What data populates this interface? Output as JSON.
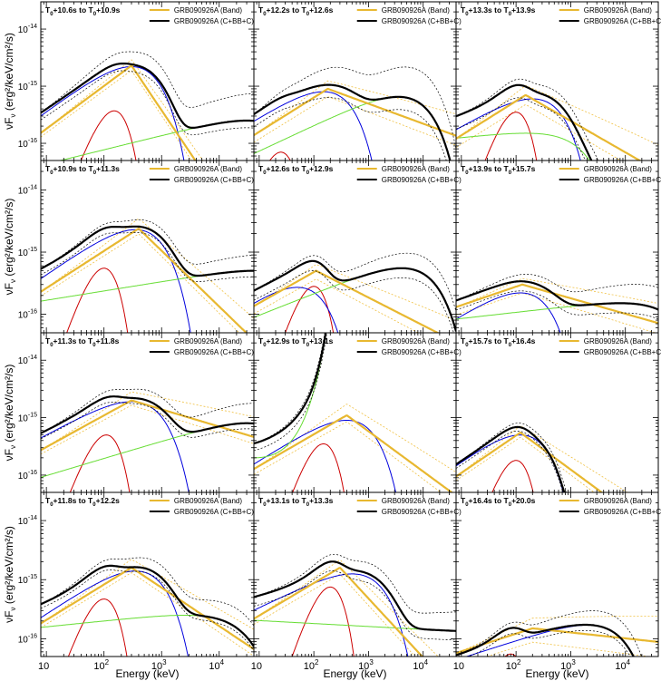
{
  "figure": {
    "xlabel": "Energy (keV)",
    "ylabel": "νF",
    "ylabel_sub": "ν",
    "ylabel_unit": " (erg²/keV/cm²/s)",
    "colors": {
      "band": "#e8b830",
      "total": "#000000",
      "blackbody": "#cc0000",
      "comptonized": "#0000dd",
      "cutoff_powerlaw": "#66dd33",
      "band_error": "#f0c040",
      "total_error": "#000000"
    },
    "legend": [
      "GRB090926A (Band)",
      "GRB090926A (C+BB+C)"
    ],
    "x_ticks": [
      {
        "label": "10",
        "exp": ""
      },
      {
        "label": "10",
        "exp": "2"
      },
      {
        "label": "10",
        "exp": "3"
      },
      {
        "label": "10",
        "exp": "4"
      }
    ],
    "y_ticks": [
      {
        "label": "10",
        "exp": "-14"
      },
      {
        "label": "10",
        "exp": "-15"
      },
      {
        "label": "10",
        "exp": "-16"
      }
    ]
  },
  "chart_data": [
    {
      "type": "line",
      "title": "T0+10.6s to T0+10.9s",
      "row": 0,
      "col": 0,
      "t1": "+10.6s to T",
      "t2": "+10.9s",
      "xlim": [
        8,
        40000
      ],
      "ylim": [
        5e-17,
        3e-14
      ],
      "comptonized": {
        "A": 2.2e-15,
        "Ep": 300,
        "a": 0.75
      },
      "blackbody": {
        "A": 3.7e-16,
        "Ep": 150
      },
      "third_c": {
        "A": 2.5e-16,
        "Ep": 30000,
        "a": 0.25
      },
      "band": {
        "A": 2.3e-15,
        "Ep": 300,
        "a": 0.75,
        "b": -1.5
      },
      "total_ef": [
        0.75,
        2.0
      ],
      "band_ef": [
        0.85,
        1.15
      ]
    },
    {
      "type": "line",
      "title": "T0+12.2s to T0+12.6s",
      "row": 0,
      "col": 1,
      "t1": "+12.2s to T",
      "t2": "+12.6s",
      "xlim": [
        8,
        40000
      ],
      "ylim": [
        5e-17,
        3e-14
      ],
      "comptonized": {
        "A": 8e-16,
        "Ep": 150,
        "a": 0.6
      },
      "blackbody": {
        "A": 7e-17,
        "Ep": 25
      },
      "third_c": {
        "A": 6.5e-16,
        "Ep": 3500,
        "a": 0.45
      },
      "band": {
        "A": 9e-16,
        "Ep": 180,
        "a": 0.6,
        "b": -0.35
      },
      "total_ef": [
        0.6,
        3.0
      ],
      "band_ef": [
        0.75,
        1.5
      ]
    },
    {
      "type": "line",
      "title": "T0+13.3s to T0+13.9s",
      "row": 0,
      "col": 2,
      "t1": "+13.3s to T",
      "t2": "+13.9s",
      "xlim": [
        8,
        40000
      ],
      "ylim": [
        5e-17,
        3e-14
      ],
      "comptonized": {
        "A": 6e-16,
        "Ep": 200,
        "a": 0.55
      },
      "blackbody": {
        "A": 3.5e-16,
        "Ep": 100
      },
      "third_c": {
        "A": 1.5e-16,
        "Ep": 150,
        "a": 0.1
      },
      "band": {
        "A": 7e-16,
        "Ep": 150,
        "a": 0.6,
        "b": -0.55
      },
      "total_ef": [
        0.6,
        1.5
      ],
      "band_ef": [
        0.7,
        1.8
      ]
    },
    {
      "type": "line",
      "title": "T0+10.9s to T0+11.3s",
      "row": 1,
      "col": 0,
      "t1": "+10.9s to T",
      "t2": "+11.3s",
      "xlim": [
        8,
        40000
      ],
      "ylim": [
        5e-17,
        3e-14
      ],
      "comptonized": {
        "A": 2.3e-15,
        "Ep": 350,
        "a": 0.65
      },
      "blackbody": {
        "A": 5.5e-16,
        "Ep": 100
      },
      "third_c": {
        "A": 5e-16,
        "Ep": 40000,
        "a": 0.15
      },
      "band": {
        "A": 2.4e-15,
        "Ep": 400,
        "a": 0.6,
        "b": -0.9
      },
      "total_ef": [
        0.8,
        1.2
      ],
      "band_ef": [
        0.85,
        1.4
      ]
    },
    {
      "type": "line",
      "title": "T0+12.6s to T0+12.9s",
      "row": 1,
      "col": 1,
      "t1": "+12.6s to T",
      "t2": "+12.9s",
      "xlim": [
        8,
        40000
      ],
      "ylim": [
        5e-17,
        3e-14
      ],
      "comptonized": {
        "A": 2.7e-16,
        "Ep": 50,
        "a": 0.6
      },
      "blackbody": {
        "A": 2.8e-16,
        "Ep": 100
      },
      "third_c": {
        "A": 5.5e-16,
        "Ep": 4000,
        "a": 0.35
      },
      "band": {
        "A": 5e-16,
        "Ep": 110,
        "a": 0.5,
        "b": -0.45
      },
      "total_ef": [
        0.7,
        1.4
      ],
      "band_ef": [
        0.75,
        1.4
      ]
    },
    {
      "type": "line",
      "title": "T0+13.9s to T0+15.7s",
      "row": 1,
      "col": 2,
      "t1": "+13.9s to T",
      "t2": "+15.7s",
      "xlim": [
        8,
        40000
      ],
      "ylim": [
        5e-17,
        3e-14
      ],
      "comptonized": {
        "A": 2.2e-16,
        "Ep": 120,
        "a": 0.55
      },
      "blackbody": {
        "A": 1e-17,
        "Ep": 100
      },
      "third_c": {
        "A": 1.5e-16,
        "Ep": 8000,
        "a": 0.1
      },
      "band": {
        "A": 3e-16,
        "Ep": 130,
        "a": 0.3,
        "b": -0.25
      },
      "total_ef": [
        0.7,
        1.5
      ],
      "band_ef": [
        0.75,
        1.3
      ]
    },
    {
      "type": "line",
      "title": "T0+11.3s to T0+11.8s",
      "row": 2,
      "col": 0,
      "t1": "+11.3s to T",
      "t2": "+11.8s",
      "xlim": [
        8,
        40000
      ],
      "ylim": [
        5e-17,
        3e-14
      ],
      "comptonized": {
        "A": 1.9e-15,
        "Ep": 300,
        "a": 0.55
      },
      "blackbody": {
        "A": 5e-16,
        "Ep": 110
      },
      "third_c": {
        "A": 8e-16,
        "Ep": 30000,
        "a": 0.3
      },
      "band": {
        "A": 2e-15,
        "Ep": 300,
        "a": 0.55,
        "b": -0.3
      },
      "total_ef": [
        0.8,
        1.5
      ],
      "band_ef": [
        0.85,
        1.4
      ]
    },
    {
      "type": "line",
      "title": "T0+12.9s to T0+13.1s",
      "row": 2,
      "col": 1,
      "t1": "+12.9s to T",
      "t2": "+13.1s",
      "xlim": [
        8,
        40000
      ],
      "ylim": [
        5e-17,
        3e-14
      ],
      "comptonized": {
        "A": 9e-16,
        "Ep": 400,
        "a": 0.6
      },
      "blackbody": {
        "A": 3.5e-16,
        "Ep": 150
      },
      "third_c": {
        "A": 2e-16,
        "Ep": 8,
        "a": -0.3
      },
      "band": {
        "A": 1.1e-15,
        "Ep": 400,
        "a": 0.55,
        "b": -0.7
      },
      "total_ef": [
        0.75,
        1.3
      ],
      "band_ef": [
        0.8,
        1.6
      ]
    },
    {
      "type": "line",
      "title": "T0+15.7s to T0+16.4s",
      "row": 2,
      "col": 2,
      "t1": "+15.7s to T",
      "t2": "+16.4s",
      "xlim": [
        8,
        40000
      ],
      "ylim": [
        5e-17,
        3e-14
      ],
      "comptonized": {
        "A": 5e-16,
        "Ep": 120,
        "a": 0.7
      },
      "blackbody": {
        "A": 1.8e-16,
        "Ep": 100
      },
      "third_c": {
        "A": 1e-17,
        "Ep": 100,
        "a": 0.1
      },
      "band": {
        "A": 5.5e-16,
        "Ep": 120,
        "a": 0.65,
        "b": -0.7
      },
      "total_ef": [
        0.85,
        1.2
      ],
      "band_ef": [
        0.85,
        1.5
      ]
    },
    {
      "type": "line",
      "title": "T0+11.8s to T0+12.2s",
      "row": 3,
      "col": 0,
      "t1": "+11.8s to T",
      "t2": "+12.2s",
      "xlim": [
        8,
        40000
      ],
      "ylim": [
        5e-17,
        3e-14
      ],
      "comptonized": {
        "A": 1.4e-15,
        "Ep": 350,
        "a": 0.65
      },
      "blackbody": {
        "A": 4.7e-16,
        "Ep": 100
      },
      "third_c": {
        "A": 2.5e-16,
        "Ep": 2500,
        "a": 0.1
      },
      "band": {
        "A": 1.6e-15,
        "Ep": 300,
        "a": 0.6,
        "b": -0.65
      },
      "total_ef": [
        0.85,
        1.5
      ],
      "band_ef": [
        0.85,
        1.35
      ]
    },
    {
      "type": "line",
      "title": "T0+13.1s to T0+13.3s",
      "row": 3,
      "col": 1,
      "t1": "+13.1s to T",
      "t2": "+13.3s",
      "xlim": [
        8,
        40000
      ],
      "ylim": [
        5e-17,
        3e-14
      ],
      "comptonized": {
        "A": 1.25e-15,
        "Ep": 500,
        "a": 0.45
      },
      "blackbody": {
        "A": 7.5e-16,
        "Ep": 200
      },
      "third_c": {
        "A": 1.3e-16,
        "Ep": 200000,
        "a": -0.05
      },
      "band": {
        "A": 1.6e-15,
        "Ep": 300,
        "a": 0.55,
        "b": -1.0
      },
      "total_ef": [
        0.7,
        1.4
      ],
      "band_ef": [
        0.8,
        1.3
      ]
    },
    {
      "type": "line",
      "title": "T0+16.4s to T0+20.0s",
      "row": 3,
      "col": 2,
      "t1": "+16.4s to T",
      "t2": "+20.0s",
      "xlim": [
        8,
        40000
      ],
      "ylim": [
        5e-17,
        3e-14
      ],
      "comptonized": {
        "A": 1.7e-16,
        "Ep": 2000,
        "a": 0.3
      },
      "blackbody": {
        "A": 5.5e-17,
        "Ep": 80
      },
      "third_c": {
        "A": 1e-17,
        "Ep": 100,
        "a": 0.1
      },
      "band": {
        "A": 1.5e-16,
        "Ep": 200,
        "a": 0.3,
        "b": -0.1
      },
      "total_ef": [
        0.8,
        1.5
      ],
      "band_ef": [
        0.6,
        1.7
      ]
    }
  ]
}
